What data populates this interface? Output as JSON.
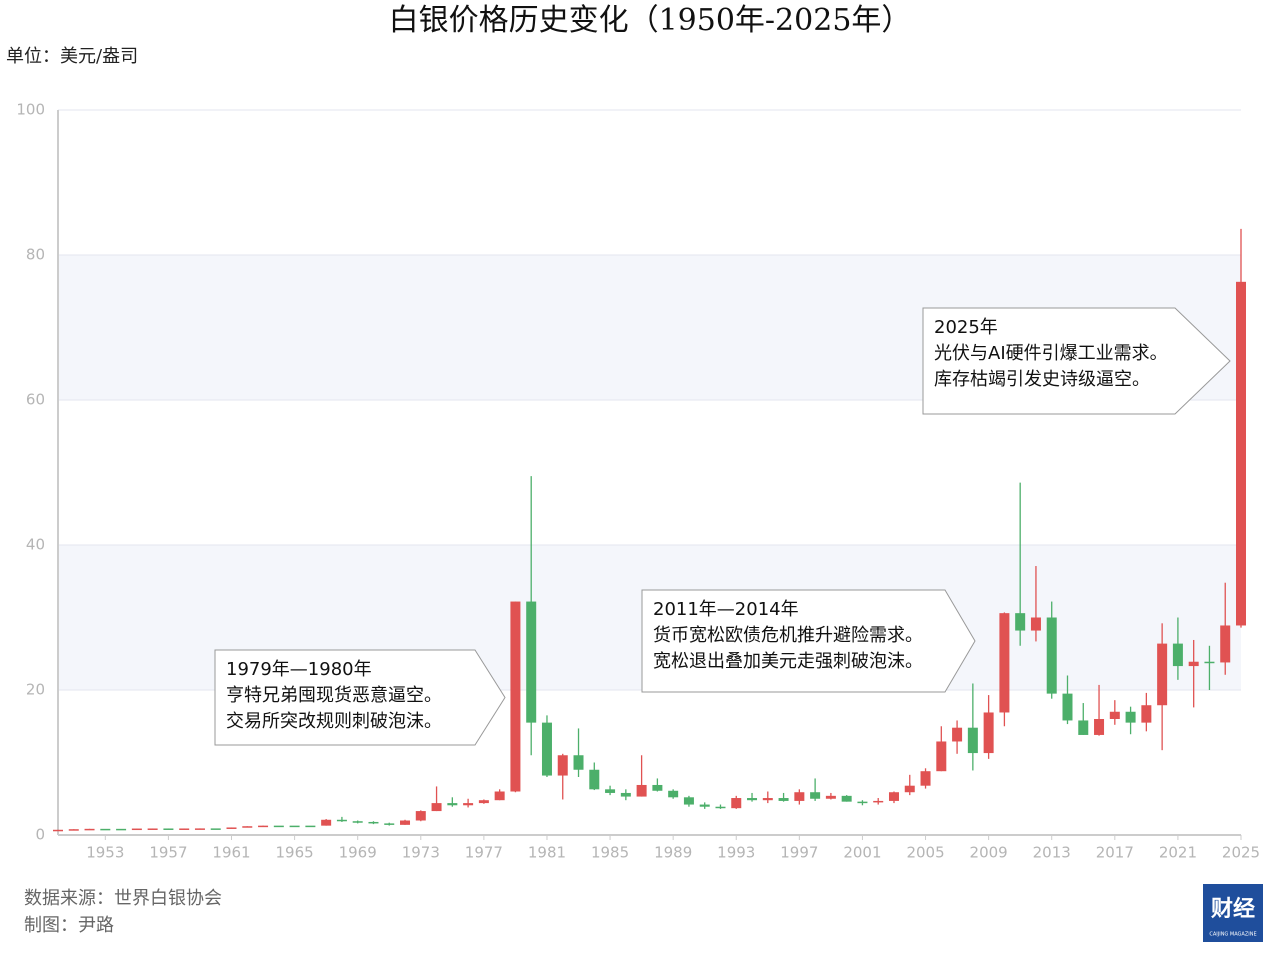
{
  "chart_data": {
    "type": "candlestick",
    "title": "白银价格历史变化（1950年-2025年）",
    "y_label": "单位：美元/盎司",
    "x": [
      1950,
      1951,
      1952,
      1953,
      1954,
      1955,
      1956,
      1957,
      1958,
      1959,
      1960,
      1961,
      1962,
      1963,
      1964,
      1965,
      1966,
      1967,
      1968,
      1969,
      1970,
      1971,
      1972,
      1973,
      1974,
      1975,
      1976,
      1977,
      1978,
      1979,
      1980,
      1981,
      1982,
      1983,
      1984,
      1985,
      1986,
      1987,
      1988,
      1989,
      1990,
      1991,
      1992,
      1993,
      1994,
      1995,
      1996,
      1997,
      1998,
      1999,
      2000,
      2001,
      2002,
      2003,
      2004,
      2005,
      2006,
      2007,
      2008,
      2009,
      2010,
      2011,
      2012,
      2013,
      2014,
      2015,
      2016,
      2017,
      2018,
      2019,
      2020,
      2021,
      2022,
      2023,
      2024,
      2025
    ],
    "open": [
      0.7,
      0.72,
      0.8,
      0.85,
      0.85,
      0.85,
      0.89,
      0.9,
      0.89,
      0.9,
      0.91,
      0.91,
      1.04,
      1.21,
      1.29,
      1.29,
      1.29,
      1.29,
      2.1,
      1.9,
      1.8,
      1.6,
      1.4,
      2.0,
      3.3,
      4.4,
      4.1,
      4.4,
      4.8,
      6.0,
      32.2,
      15.5,
      8.2,
      11.0,
      9.0,
      6.3,
      5.8,
      5.3,
      6.9,
      6.1,
      5.2,
      4.2,
      3.9,
      3.7,
      5.1,
      4.8,
      5.1,
      4.7,
      5.9,
      5.0,
      5.4,
      4.6,
      4.6,
      4.7,
      5.9,
      6.8,
      8.8,
      12.9,
      14.8,
      11.3,
      16.9,
      30.6,
      28.2,
      30.0,
      19.5,
      15.8,
      13.8,
      16.0,
      17.0,
      15.5,
      17.9,
      26.4,
      23.3,
      23.9,
      23.8,
      28.9
    ],
    "close": [
      0.72,
      0.8,
      0.85,
      0.85,
      0.85,
      0.89,
      0.9,
      0.89,
      0.9,
      0.91,
      0.91,
      1.04,
      1.21,
      1.29,
      1.29,
      1.29,
      1.29,
      2.1,
      1.9,
      1.8,
      1.6,
      1.4,
      2.0,
      3.3,
      4.4,
      4.1,
      4.4,
      4.8,
      6.0,
      32.2,
      15.5,
      8.2,
      11.0,
      9.0,
      6.3,
      5.8,
      5.3,
      6.9,
      6.1,
      5.2,
      4.2,
      3.9,
      3.7,
      5.1,
      4.8,
      5.1,
      4.7,
      5.9,
      5.0,
      5.4,
      4.6,
      4.6,
      4.7,
      5.9,
      6.8,
      8.8,
      12.9,
      14.8,
      11.3,
      16.9,
      30.6,
      28.2,
      30.0,
      19.5,
      15.8,
      13.8,
      16.0,
      17.0,
      15.5,
      17.9,
      26.4,
      23.3,
      23.9,
      23.8,
      28.9,
      76.3
    ],
    "low": [
      0.7,
      0.72,
      0.8,
      0.85,
      0.85,
      0.85,
      0.89,
      0.89,
      0.89,
      0.9,
      0.91,
      0.91,
      1.04,
      1.21,
      1.29,
      1.29,
      1.29,
      1.29,
      1.8,
      1.6,
      1.5,
      1.3,
      1.4,
      1.9,
      3.3,
      3.9,
      3.8,
      4.3,
      4.8,
      5.9,
      11.0,
      8.0,
      4.9,
      8.0,
      6.2,
      5.5,
      4.8,
      5.3,
      6.0,
      5.0,
      3.9,
      3.6,
      3.6,
      3.6,
      4.6,
      4.4,
      4.6,
      4.2,
      4.7,
      4.9,
      4.6,
      4.1,
      4.2,
      4.4,
      5.5,
      6.4,
      8.8,
      11.2,
      8.9,
      10.5,
      15.0,
      26.1,
      26.7,
      18.8,
      15.3,
      13.8,
      13.7,
      15.2,
      13.9,
      14.3,
      11.7,
      21.4,
      17.6,
      20.0,
      22.1,
      28.6
    ],
    "high": [
      0.72,
      0.8,
      0.85,
      0.85,
      0.85,
      0.89,
      0.9,
      0.9,
      0.9,
      0.91,
      0.91,
      1.04,
      1.21,
      1.29,
      1.29,
      1.29,
      1.29,
      2.2,
      2.5,
      2.0,
      1.9,
      1.7,
      2.1,
      3.4,
      6.7,
      5.2,
      5.0,
      4.9,
      6.3,
      32.2,
      49.5,
      16.5,
      11.2,
      14.7,
      10.0,
      6.8,
      6.3,
      11.0,
      7.8,
      6.3,
      5.4,
      4.5,
      4.2,
      5.4,
      5.8,
      6.0,
      5.8,
      6.3,
      7.8,
      5.8,
      5.5,
      4.8,
      5.1,
      6.0,
      8.3,
      9.2,
      15.0,
      15.8,
      20.9,
      19.3,
      30.7,
      48.6,
      37.1,
      32.2,
      22.0,
      18.2,
      20.7,
      18.6,
      17.7,
      19.6,
      29.2,
      30.0,
      26.9,
      26.1,
      34.8,
      83.6
    ],
    "up_color": "#e05252",
    "down_color": "#4caf6a",
    "xlim": [
      1950,
      2025
    ],
    "xticks": [
      1953,
      1957,
      1961,
      1965,
      1969,
      1973,
      1977,
      1981,
      1985,
      1989,
      1993,
      1997,
      2001,
      2005,
      2009,
      2013,
      2017,
      2021,
      2025
    ],
    "ylim": [
      0,
      100
    ],
    "yticks": [
      0,
      20,
      40,
      60,
      80,
      100
    ],
    "grid": true,
    "annotations": [
      {
        "lines": [
          "1979年—1980年",
          "亨特兄弟囤现货恶意逼空。",
          "交易所突改规则刺破泡沫。"
        ]
      },
      {
        "lines": [
          "2011年—2014年",
          "货币宽松欧债危机推升避险需求。",
          "宽松退出叠加美元走强刺破泡沫。"
        ]
      },
      {
        "lines": [
          "2025年",
          "光伏与AI硬件引爆工业需求。",
          "库存枯竭引发史诗级逼空。"
        ]
      }
    ],
    "source": "数据来源：世界白银协会",
    "author": "制图：尹路",
    "logo": {
      "text": "财经",
      "sub": "CAIJING MAGAZINE"
    }
  }
}
